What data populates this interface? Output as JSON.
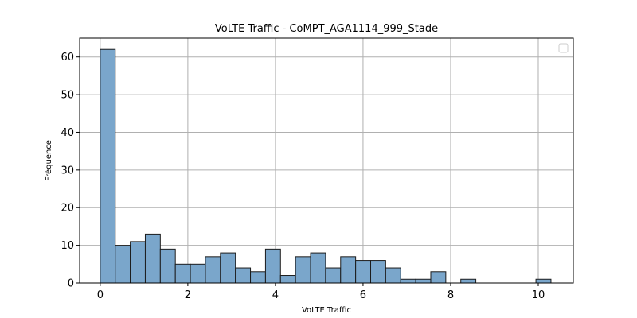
{
  "chart_data": {
    "type": "bar",
    "subtype": "histogram",
    "title": "VoLTE Traffic - CoMPT_AGA1114_999_Stade",
    "xlabel": "VoLTE Traffic",
    "ylabel": "Fréquence",
    "xlim": [
      -0.47,
      10.8
    ],
    "ylim": [
      0,
      65
    ],
    "x_ticks": [
      0,
      2,
      4,
      6,
      8,
      10
    ],
    "y_ticks": [
      0,
      10,
      20,
      30,
      40,
      50,
      60
    ],
    "grid": true,
    "legend": {
      "position": "top-right",
      "entries": []
    },
    "bin_start": 0,
    "bin_width": 0.343,
    "bins": [
      {
        "x_start": 0.0,
        "count": 62
      },
      {
        "x_start": 0.343,
        "count": 10
      },
      {
        "x_start": 0.686,
        "count": 11
      },
      {
        "x_start": 1.029,
        "count": 13
      },
      {
        "x_start": 1.372,
        "count": 9
      },
      {
        "x_start": 1.715,
        "count": 5
      },
      {
        "x_start": 2.058,
        "count": 5
      },
      {
        "x_start": 2.401,
        "count": 7
      },
      {
        "x_start": 2.744,
        "count": 8
      },
      {
        "x_start": 3.087,
        "count": 4
      },
      {
        "x_start": 3.43,
        "count": 3
      },
      {
        "x_start": 3.773,
        "count": 9
      },
      {
        "x_start": 4.116,
        "count": 2
      },
      {
        "x_start": 4.459,
        "count": 7
      },
      {
        "x_start": 4.802,
        "count": 8
      },
      {
        "x_start": 5.145,
        "count": 4
      },
      {
        "x_start": 5.488,
        "count": 7
      },
      {
        "x_start": 5.831,
        "count": 6
      },
      {
        "x_start": 6.174,
        "count": 6
      },
      {
        "x_start": 6.517,
        "count": 4
      },
      {
        "x_start": 6.86,
        "count": 1
      },
      {
        "x_start": 7.203,
        "count": 1
      },
      {
        "x_start": 7.546,
        "count": 3
      },
      {
        "x_start": 7.889,
        "count": 0
      },
      {
        "x_start": 8.232,
        "count": 1
      },
      {
        "x_start": 8.575,
        "count": 0
      },
      {
        "x_start": 8.918,
        "count": 0
      },
      {
        "x_start": 9.261,
        "count": 0
      },
      {
        "x_start": 9.604,
        "count": 0
      },
      {
        "x_start": 9.947,
        "count": 1
      }
    ],
    "colors": {
      "bar_fill": "#7aa6cb",
      "bar_edge": "#1c1c1c",
      "grid": "#b0b0b0",
      "axis": "#000000"
    }
  }
}
